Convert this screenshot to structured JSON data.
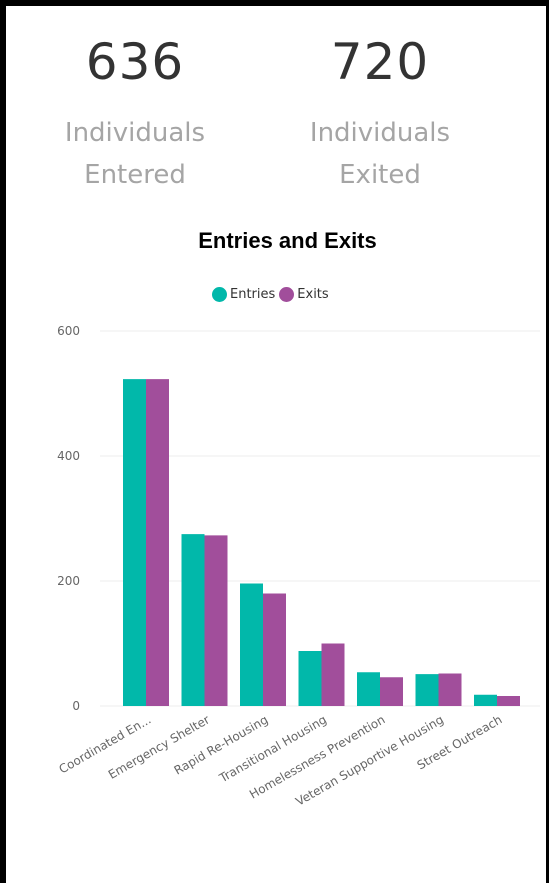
{
  "kpis": [
    {
      "value": "636",
      "label": "Individuals Entered"
    },
    {
      "value": "720",
      "label": "Individuals Exited"
    }
  ],
  "colors": {
    "entries": "#01B8AA",
    "exits": "#A14E9B",
    "grid": "#eeeeee"
  },
  "chart_data": {
    "type": "bar",
    "title": "Entries and Exits",
    "legend_position": "top-center",
    "grid": true,
    "ylim": [
      0,
      600
    ],
    "yticks": [
      0,
      200,
      400,
      600
    ],
    "categories": [
      "Coordinated En...",
      "Emergency Shelter",
      "Rapid Re-Housing",
      "Transitional Housing",
      "Homelessness Prevention",
      "Veteran Supportive Housing",
      "Street Outreach"
    ],
    "series": [
      {
        "name": "Entries",
        "values": [
          523,
          275,
          196,
          88,
          54,
          51,
          18
        ]
      },
      {
        "name": "Exits",
        "values": [
          523,
          273,
          180,
          100,
          46,
          52,
          16
        ]
      }
    ]
  }
}
